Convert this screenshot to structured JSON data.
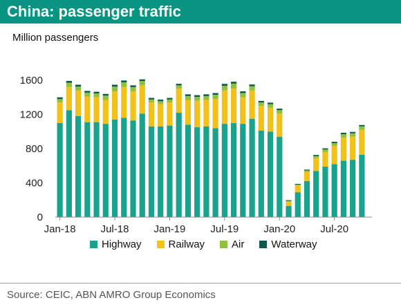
{
  "header": {
    "title": "China: passenger traffic"
  },
  "chart_data": {
    "type": "bar",
    "stacked": true,
    "subtitle": "Million passengers",
    "ylim": [
      0,
      1600
    ],
    "yticks": [
      0,
      400,
      800,
      1200,
      1600
    ],
    "grid": false,
    "legend_position": "bottom",
    "categories": [
      "Jan-18",
      "Feb-18",
      "Mar-18",
      "Apr-18",
      "May-18",
      "Jun-18",
      "Jul-18",
      "Aug-18",
      "Sep-18",
      "Oct-18",
      "Nov-18",
      "Dec-18",
      "Jan-19",
      "Feb-19",
      "Mar-19",
      "Apr-19",
      "May-19",
      "Jun-19",
      "Jul-19",
      "Aug-19",
      "Sep-19",
      "Oct-19",
      "Nov-19",
      "Dec-19",
      "Jan-20",
      "Feb-20",
      "Mar-20",
      "Apr-20",
      "May-20",
      "Jun-20",
      "Jul-20",
      "Aug-20",
      "Sep-20",
      "Oct-20"
    ],
    "xtick_labels": [
      "Jan-18",
      "Jul-18",
      "Jan-19",
      "Jul-19",
      "Jan-20",
      "Jul-20"
    ],
    "xtick_indices": [
      0,
      6,
      12,
      18,
      24,
      30
    ],
    "series": [
      {
        "name": "Highway",
        "color": "#1aa38c",
        "values": [
          1100,
          1250,
          1180,
          1110,
          1110,
          1090,
          1140,
          1160,
          1130,
          1210,
          1060,
          1060,
          1070,
          1220,
          1080,
          1050,
          1060,
          1040,
          1090,
          1100,
          1090,
          1150,
          1010,
          1000,
          940,
          130,
          290,
          420,
          540,
          590,
          620,
          660,
          670,
          730
        ]
      },
      {
        "name": "Railway",
        "color": "#f3c11b",
        "values": [
          240,
          270,
          300,
          300,
          290,
          280,
          330,
          360,
          340,
          330,
          280,
          260,
          270,
          280,
          290,
          310,
          310,
          340,
          390,
          400,
          310,
          330,
          290,
          280,
          270,
          50,
          80,
          110,
          150,
          170,
          210,
          270,
          270,
          290
        ]
      },
      {
        "name": "Air",
        "color": "#8fc13e",
        "values": [
          40,
          50,
          45,
          45,
          45,
          50,
          55,
          55,
          50,
          50,
          35,
          35,
          35,
          40,
          45,
          45,
          45,
          50,
          55,
          60,
          50,
          50,
          40,
          40,
          40,
          10,
          10,
          15,
          25,
          30,
          35,
          40,
          40,
          40
        ]
      },
      {
        "name": "Waterway",
        "color": "#0b5a4e",
        "values": [
          20,
          22,
          22,
          20,
          20,
          20,
          22,
          22,
          20,
          20,
          18,
          18,
          18,
          18,
          20,
          20,
          20,
          20,
          22,
          22,
          20,
          20,
          18,
          18,
          18,
          8,
          8,
          10,
          12,
          14,
          15,
          16,
          16,
          16
        ]
      }
    ]
  },
  "source": "Source: CEIC, ABN AMRO Group Economics"
}
